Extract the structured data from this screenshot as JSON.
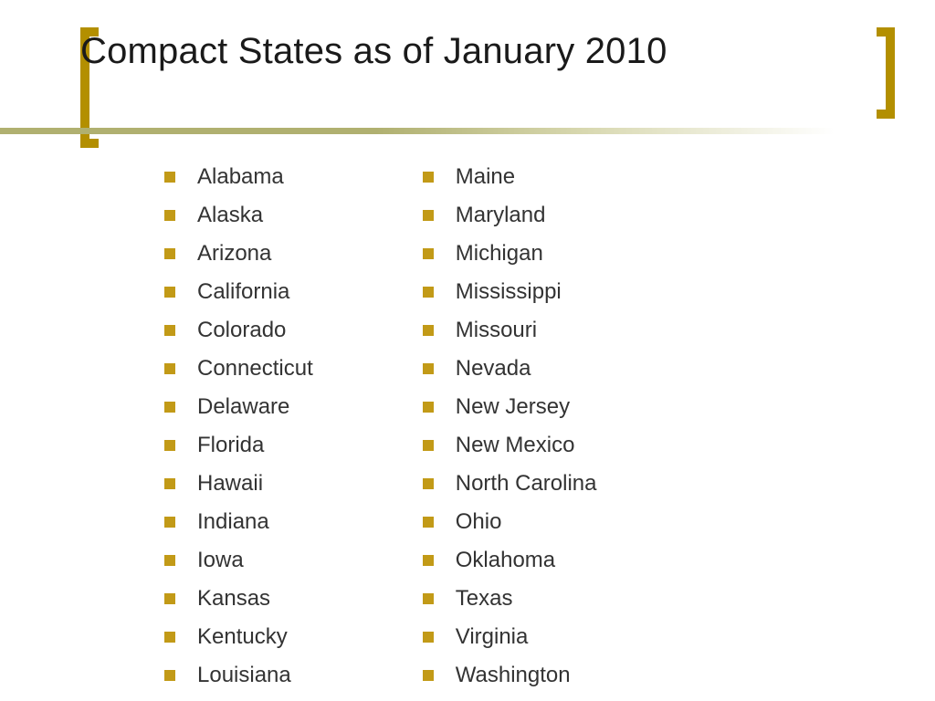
{
  "title": "Compact States as of January 2010",
  "bullet_color": "#c29a17",
  "bracket_color": "#b38f00",
  "text_color": "#333333",
  "title_color": "#1a1a1a",
  "background_color": "#ffffff",
  "title_fontsize": 40,
  "item_fontsize": 24,
  "columns": [
    {
      "items": [
        "Alabama",
        "Alaska",
        "Arizona",
        "California",
        "Colorado",
        "Connecticut",
        "Delaware",
        "Florida",
        "Hawaii",
        "Indiana",
        "Iowa",
        "Kansas",
        "Kentucky",
        "Louisiana"
      ]
    },
    {
      "items": [
        "Maine",
        "Maryland",
        "Michigan",
        "Mississippi",
        "Missouri",
        "Nevada",
        "New Jersey",
        "New Mexico",
        "North Carolina",
        "Ohio",
        "Oklahoma",
        "Texas",
        "Virginia",
        "Washington"
      ]
    }
  ]
}
